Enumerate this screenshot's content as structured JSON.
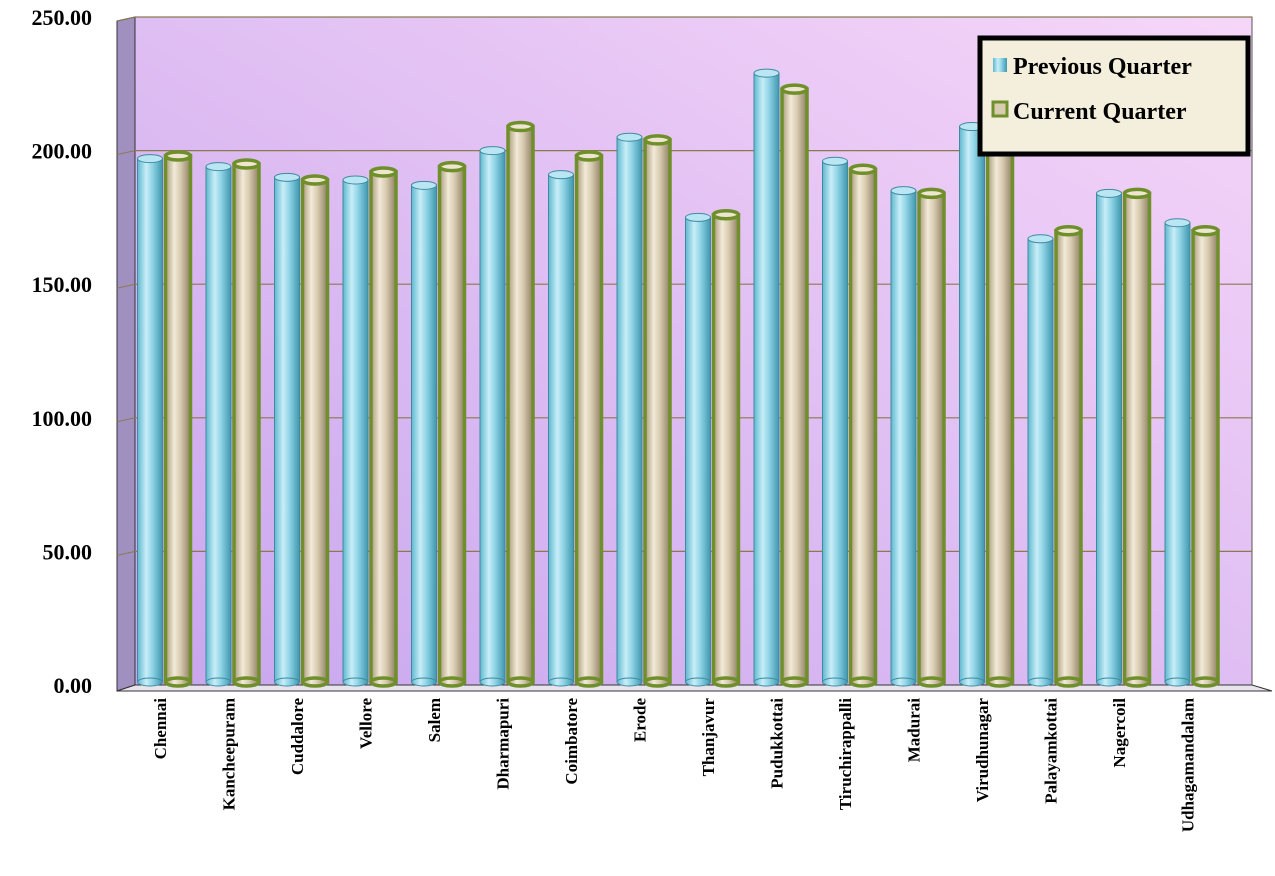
{
  "chart_data": {
    "type": "bar",
    "style": "3d-cylinder",
    "categories": [
      "Chennai",
      "Kancheepuram",
      "Cuddalore",
      "Vellore",
      "Salem",
      "Dharmapuri",
      "Coimbatore",
      "Erode",
      "Thanjavur",
      "Pudukkottai",
      "Tiruchirappalli",
      "Madurai",
      "Virudhunagar",
      "Palayamkottai",
      "Nagercoil",
      "Udhagamandalam"
    ],
    "series": [
      {
        "name": "Previous Quarter",
        "color": "#8fd3e6",
        "values": [
          197,
          194,
          190,
          189,
          187,
          200,
          191,
          205,
          175,
          229,
          196,
          185,
          209,
          167,
          184,
          173
        ]
      },
      {
        "name": "Current Quarter",
        "color": "#d8cbb0",
        "edge": "#6e8f2a",
        "values": [
          198,
          195,
          189,
          192,
          194,
          209,
          198,
          204,
          176,
          223,
          193,
          184,
          205,
          170,
          184,
          170
        ]
      }
    ],
    "ylim": [
      0,
      250
    ],
    "yticks": [
      "0.00",
      "50.00",
      "100.00",
      "150.00",
      "200.00",
      "250.00"
    ],
    "grid": true,
    "legend_position": "top-right",
    "title": "",
    "xlabel": "",
    "ylabel": ""
  },
  "colors": {
    "plot_bg_start": "#c8a6ee",
    "plot_bg_end": "#f6d6f8",
    "side_wall": "#a090c0",
    "grid": "#8a7a50",
    "legend_bg": "#f4eedc"
  }
}
